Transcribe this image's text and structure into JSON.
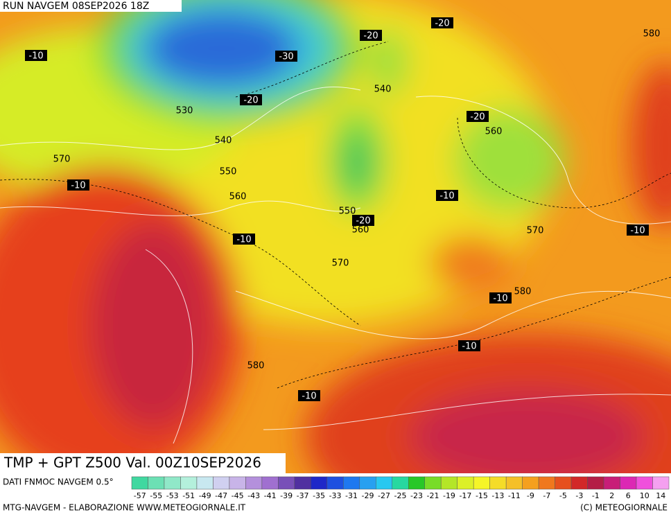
{
  "header": {
    "run": "RUN NAVGEM 08SEP2026 18Z",
    "product": "TMP + GPT Z500 Val. 00Z10SEP2026"
  },
  "map": {
    "temperature_labels": [
      "-10",
      "-30",
      "-20",
      "-20",
      "-20",
      "-20",
      "-20",
      "-10",
      "-10",
      "-10",
      "-10",
      "-10",
      "-10",
      "-10"
    ],
    "height_labels": [
      "540",
      "530",
      "540",
      "570",
      "550",
      "560",
      "560",
      "550",
      "560",
      "570",
      "570",
      "580",
      "580",
      "580"
    ]
  },
  "legend": {
    "source": "DATI FNMOC NAVGEM 0.5°",
    "labels": [
      "-57",
      "-55",
      "-53",
      "-51",
      "-49",
      "-47",
      "-45",
      "-43",
      "-41",
      "-39",
      "-37",
      "-35",
      "-33",
      "-31",
      "-29",
      "-27",
      "-25",
      "-23",
      "-21",
      "-19",
      "-17",
      "-15",
      "-13",
      "-11",
      "-9",
      "-7",
      "-5",
      "-3",
      "-1",
      "2",
      "6",
      "10",
      "14"
    ],
    "colors": [
      "#40d8a0",
      "#6ce0b4",
      "#90e8c8",
      "#b4f0dc",
      "#c8e8f0",
      "#d0d0f0",
      "#c8b4e8",
      "#b490dc",
      "#a070d0",
      "#7850b8",
      "#5030a0",
      "#1e28c8",
      "#1e50e0",
      "#1e78f0",
      "#28a0f0",
      "#28c8f0",
      "#28d8a0",
      "#28c828",
      "#78dc28",
      "#b4e628",
      "#dcf028",
      "#f5f528",
      "#f5dc28",
      "#f5c028",
      "#f5a01e",
      "#f0781e",
      "#e6501e",
      "#d22828",
      "#b41e46",
      "#c81e78",
      "#dc28b4",
      "#f050dc",
      "#f5a0f0"
    ]
  },
  "footer": {
    "left": "MTG-NAVGEM - ELABORAZIONE WWW.METEOGIORNALE.IT",
    "right": "(C) METEOGIORNALE"
  }
}
